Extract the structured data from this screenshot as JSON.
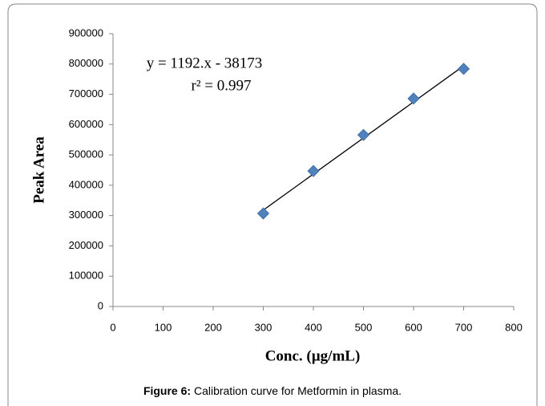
{
  "chart_data": {
    "type": "scatter",
    "x_label": "Conc. (µg/mL)",
    "y_label": "Peak Area",
    "annotations": [
      "y = 1192.x - 38173",
      "r² = 0.997"
    ],
    "x": [
      300,
      400,
      500,
      600,
      700
    ],
    "values": [
      307000,
      447000,
      566000,
      686000,
      784000
    ],
    "color": "#4f81bd",
    "trendline": {
      "x": [
        300,
        700
      ],
      "values": [
        318000,
        794000
      ],
      "color": "#000000"
    },
    "xlim": [
      0,
      800
    ],
    "xticks": [
      0,
      100,
      200,
      300,
      400,
      500,
      600,
      700,
      800
    ],
    "ylim": [
      0,
      900000
    ],
    "yticks": [
      0,
      100000,
      200000,
      300000,
      400000,
      500000,
      600000,
      700000,
      800000,
      900000
    ],
    "grid": false
  },
  "caption": {
    "label": "Figure 6:",
    "text": "Calibration curve for Metformin in plasma."
  }
}
